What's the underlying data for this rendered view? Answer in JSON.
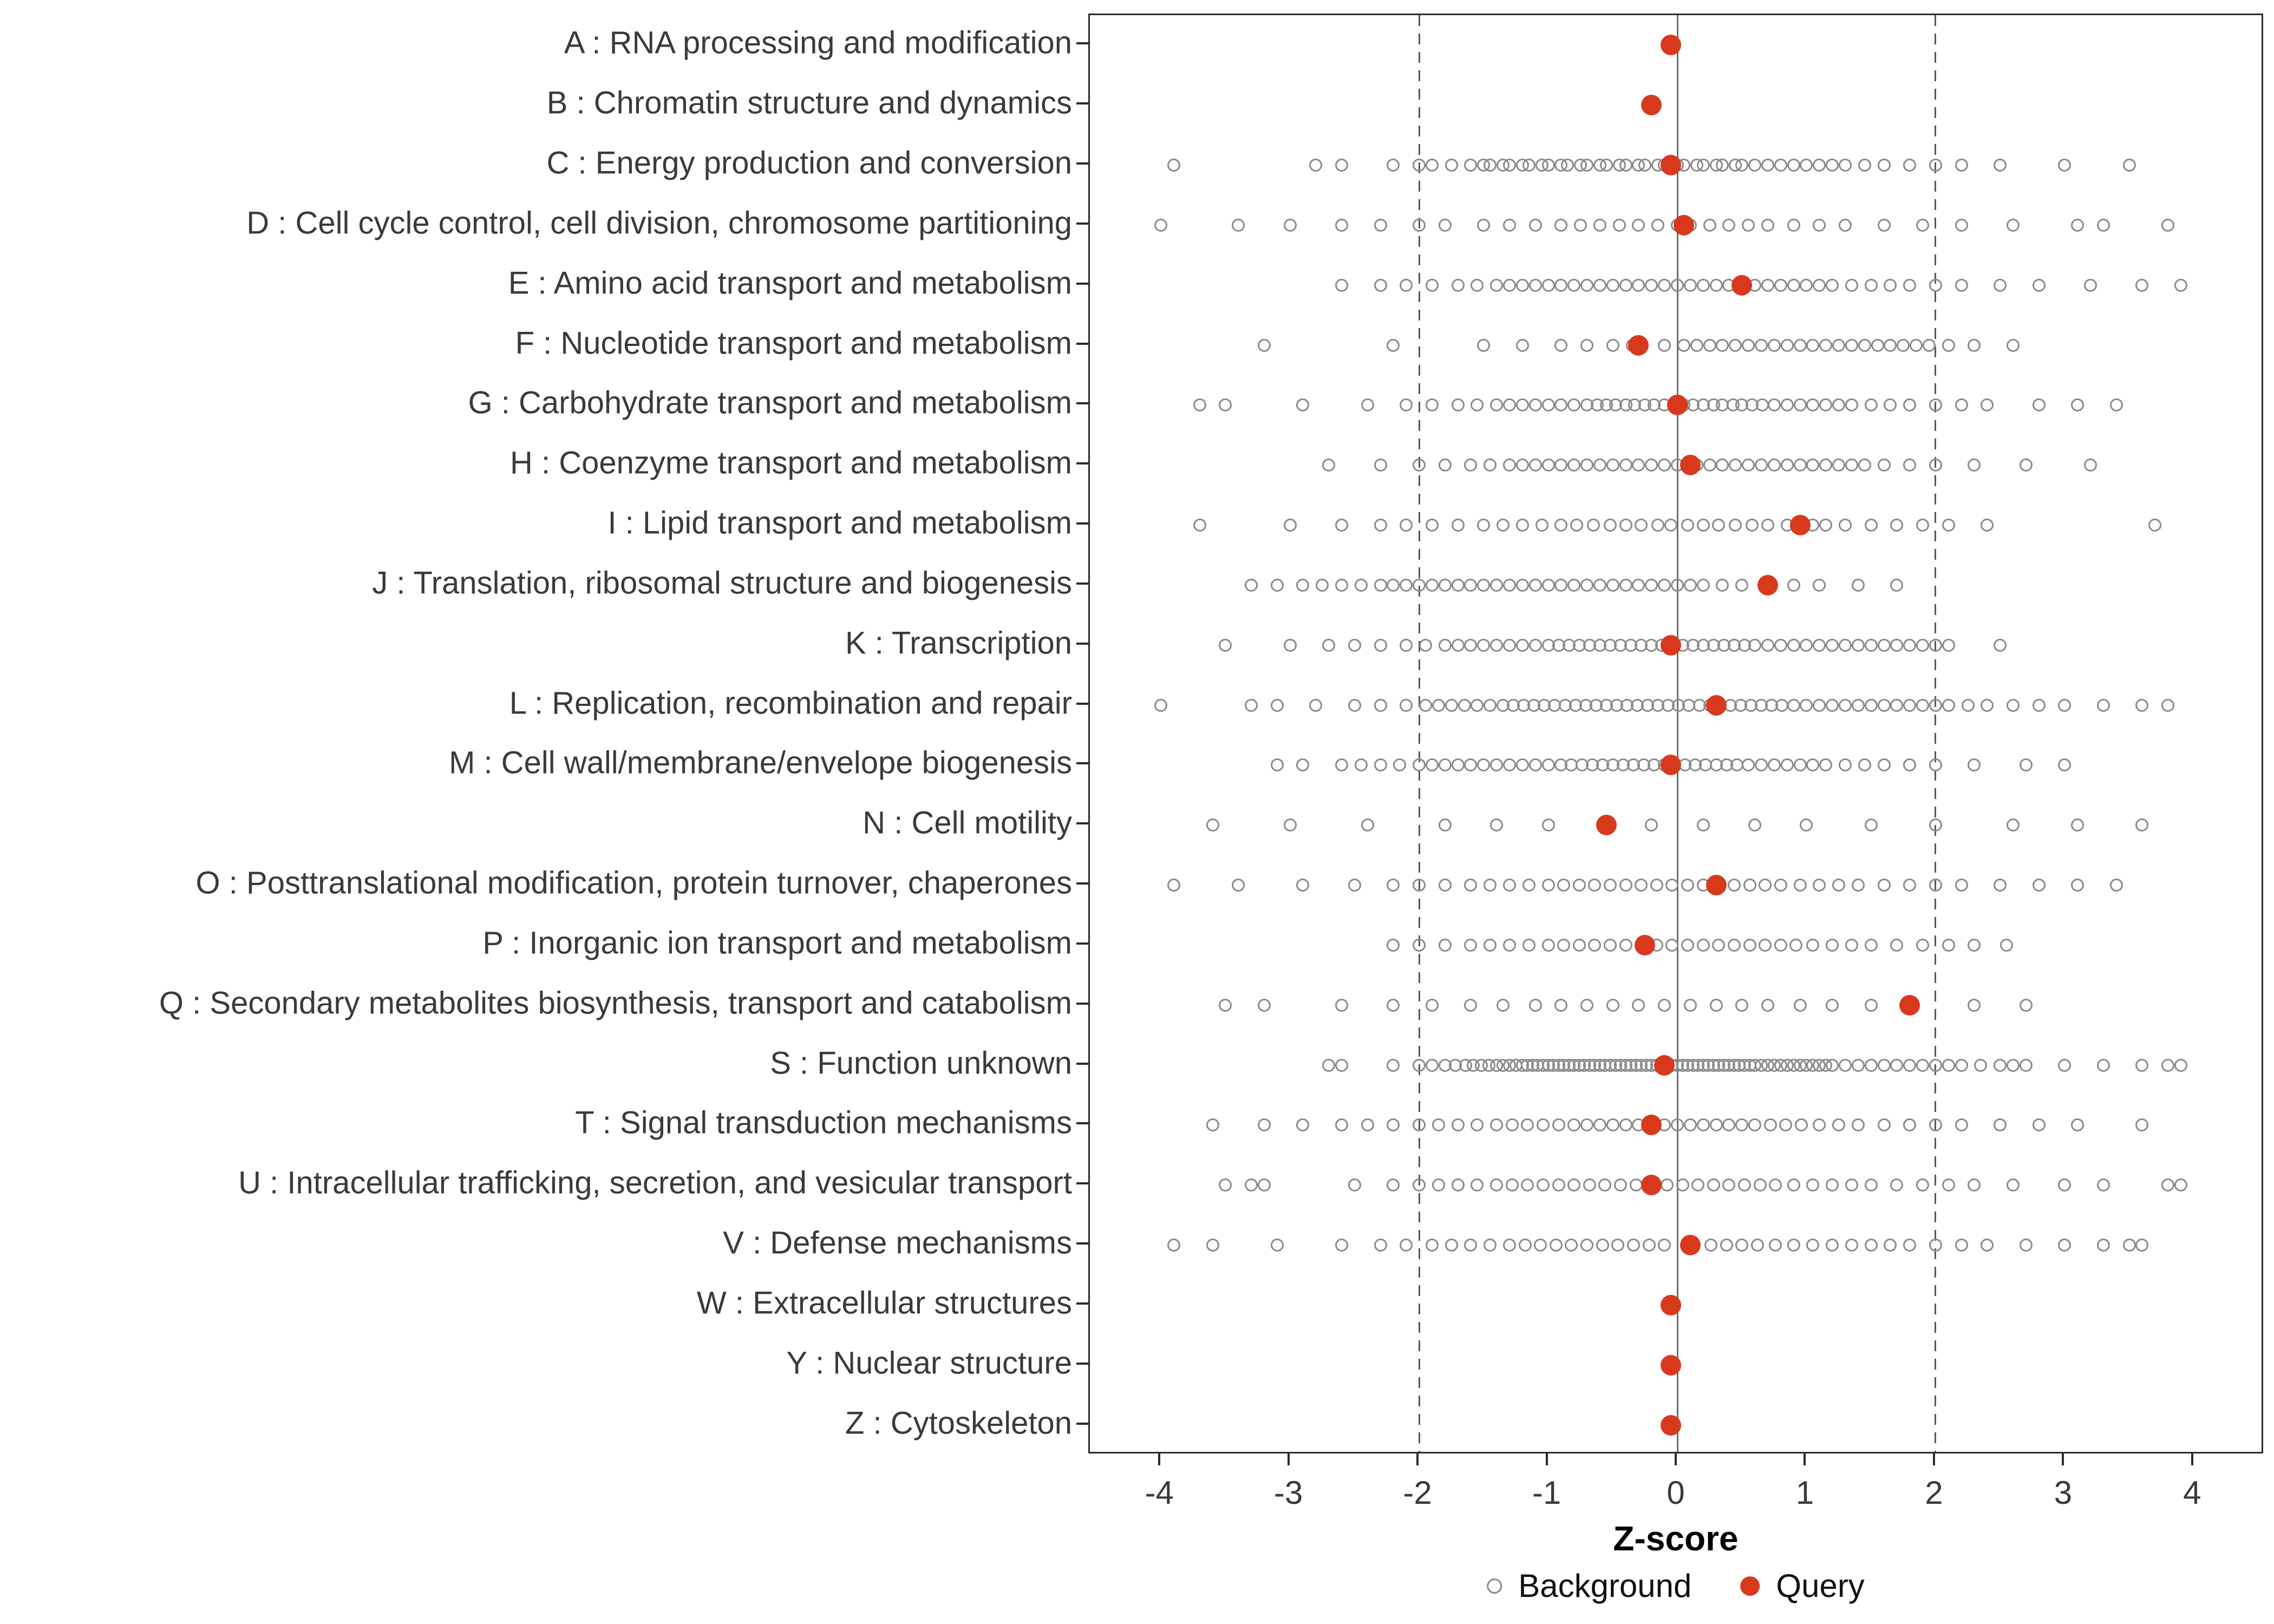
{
  "chart_data": {
    "type": "scatter",
    "title": "",
    "xlabel": "Z-score",
    "ylabel": "",
    "xlim": [
      -4.55,
      4.55
    ],
    "x_ticks": [
      -4,
      -3,
      -2,
      -1,
      0,
      1,
      2,
      3,
      4
    ],
    "grid": false,
    "reference_lines": {
      "solid": [
        0
      ],
      "dashed": [
        -2,
        2
      ]
    },
    "colors": {
      "background": "#8a8a8a",
      "query": "#D8391D",
      "reference": "#565656"
    },
    "legend": [
      {
        "label": "Background",
        "marker": "open-circle",
        "color": "#8a8a8a"
      },
      {
        "label": "Query",
        "marker": "filled-circle",
        "color": "#D8391D"
      }
    ],
    "legend_position": "bottom",
    "categories": [
      {
        "code": "A",
        "label": "A : RNA processing and modification",
        "query": -0.05,
        "background": []
      },
      {
        "code": "B",
        "label": "B : Chromatin structure and dynamics",
        "query": -0.2,
        "background": []
      },
      {
        "code": "C",
        "label": "C : Energy production and conversion",
        "query": -0.05,
        "background": [
          -3.9,
          -2.8,
          -2.6,
          -2.2,
          -2.0,
          -1.9,
          -1.75,
          -1.6,
          -1.5,
          -1.45,
          -1.35,
          -1.3,
          -1.2,
          -1.15,
          -1.05,
          -1.0,
          -0.9,
          -0.85,
          -0.75,
          -0.7,
          -0.6,
          -0.55,
          -0.45,
          -0.4,
          -0.3,
          -0.25,
          -0.15,
          -0.1,
          0.0,
          0.05,
          0.15,
          0.2,
          0.3,
          0.35,
          0.45,
          0.5,
          0.6,
          0.7,
          0.8,
          0.9,
          1.0,
          1.1,
          1.2,
          1.3,
          1.45,
          1.6,
          1.8,
          2.0,
          2.2,
          2.5,
          3.0,
          3.5
        ]
      },
      {
        "code": "D",
        "label": "D : Cell cycle control, cell division, chromosome partitioning",
        "query": 0.05,
        "background": [
          -4.0,
          -3.4,
          -3.0,
          -2.6,
          -2.3,
          -2.0,
          -1.8,
          -1.5,
          -1.3,
          -1.1,
          -0.9,
          -0.75,
          -0.6,
          -0.45,
          -0.3,
          -0.15,
          0.0,
          0.1,
          0.25,
          0.4,
          0.55,
          0.7,
          0.9,
          1.1,
          1.3,
          1.6,
          1.9,
          2.2,
          2.6,
          3.1,
          3.3,
          3.8
        ]
      },
      {
        "code": "E",
        "label": "E : Amino acid transport and metabolism",
        "query": 0.5,
        "background": [
          -2.6,
          -2.3,
          -2.1,
          -1.9,
          -1.7,
          -1.55,
          -1.4,
          -1.3,
          -1.2,
          -1.1,
          -1.0,
          -0.9,
          -0.8,
          -0.7,
          -0.6,
          -0.5,
          -0.4,
          -0.3,
          -0.2,
          -0.1,
          0.0,
          0.1,
          0.2,
          0.3,
          0.4,
          0.6,
          0.7,
          0.8,
          0.9,
          1.0,
          1.1,
          1.2,
          1.35,
          1.5,
          1.65,
          1.8,
          2.0,
          2.2,
          2.5,
          2.8,
          3.2,
          3.6,
          3.9
        ]
      },
      {
        "code": "F",
        "label": "F : Nucleotide transport and metabolism",
        "query": -0.3,
        "background": [
          -3.2,
          -2.2,
          -1.5,
          -1.2,
          -0.9,
          -0.7,
          -0.5,
          -0.35,
          -0.1,
          0.05,
          0.15,
          0.25,
          0.35,
          0.45,
          0.55,
          0.65,
          0.75,
          0.85,
          0.95,
          1.05,
          1.15,
          1.25,
          1.35,
          1.45,
          1.55,
          1.65,
          1.75,
          1.85,
          1.95,
          2.1,
          2.3,
          2.6
        ]
      },
      {
        "code": "G",
        "label": "G : Carbohydrate transport and metabolism",
        "query": 0.0,
        "background": [
          -3.7,
          -3.5,
          -2.9,
          -2.4,
          -2.1,
          -1.9,
          -1.7,
          -1.55,
          -1.4,
          -1.3,
          -1.2,
          -1.1,
          -1.0,
          -0.9,
          -0.8,
          -0.7,
          -0.62,
          -0.55,
          -0.48,
          -0.4,
          -0.33,
          -0.25,
          -0.18,
          -0.1,
          -0.03,
          0.05,
          0.12,
          0.2,
          0.28,
          0.35,
          0.43,
          0.5,
          0.58,
          0.66,
          0.75,
          0.85,
          0.95,
          1.05,
          1.15,
          1.25,
          1.35,
          1.5,
          1.65,
          1.8,
          2.0,
          2.2,
          2.4,
          2.8,
          3.1,
          3.4
        ]
      },
      {
        "code": "H",
        "label": "H : Coenzyme transport and metabolism",
        "query": 0.1,
        "background": [
          -2.7,
          -2.3,
          -2.0,
          -1.8,
          -1.6,
          -1.45,
          -1.3,
          -1.2,
          -1.1,
          -1.0,
          -0.9,
          -0.8,
          -0.7,
          -0.6,
          -0.5,
          -0.4,
          -0.3,
          -0.2,
          -0.1,
          0.0,
          0.15,
          0.25,
          0.35,
          0.45,
          0.55,
          0.65,
          0.75,
          0.85,
          0.95,
          1.05,
          1.15,
          1.25,
          1.35,
          1.45,
          1.6,
          1.8,
          2.0,
          2.3,
          2.7,
          3.2
        ]
      },
      {
        "code": "I",
        "label": "I : Lipid transport and metabolism",
        "query": 0.95,
        "background": [
          -3.7,
          -3.0,
          -2.6,
          -2.3,
          -2.1,
          -1.9,
          -1.7,
          -1.5,
          -1.35,
          -1.2,
          -1.05,
          -0.9,
          -0.78,
          -0.65,
          -0.52,
          -0.4,
          -0.28,
          -0.15,
          -0.05,
          0.08,
          0.2,
          0.32,
          0.45,
          0.58,
          0.7,
          0.85,
          1.05,
          1.15,
          1.3,
          1.5,
          1.7,
          1.9,
          2.1,
          2.4,
          3.7
        ]
      },
      {
        "code": "J",
        "label": "J : Translation, ribosomal structure and biogenesis",
        "query": 0.7,
        "background": [
          -3.3,
          -3.1,
          -2.9,
          -2.75,
          -2.6,
          -2.45,
          -2.3,
          -2.2,
          -2.1,
          -2.0,
          -1.9,
          -1.8,
          -1.7,
          -1.6,
          -1.5,
          -1.4,
          -1.3,
          -1.2,
          -1.1,
          -1.0,
          -0.9,
          -0.8,
          -0.7,
          -0.6,
          -0.5,
          -0.4,
          -0.3,
          -0.2,
          -0.1,
          0.0,
          0.1,
          0.2,
          0.35,
          0.5,
          0.9,
          1.1,
          1.4,
          1.7
        ]
      },
      {
        "code": "K",
        "label": "K : Transcription",
        "query": -0.05,
        "background": [
          -3.5,
          -3.0,
          -2.7,
          -2.5,
          -2.3,
          -2.1,
          -1.95,
          -1.8,
          -1.7,
          -1.6,
          -1.5,
          -1.4,
          -1.3,
          -1.2,
          -1.1,
          -1.0,
          -0.92,
          -0.84,
          -0.76,
          -0.68,
          -0.6,
          -0.52,
          -0.44,
          -0.36,
          -0.28,
          -0.2,
          -0.12,
          0.04,
          0.12,
          0.2,
          0.28,
          0.36,
          0.44,
          0.52,
          0.6,
          0.7,
          0.8,
          0.9,
          1.0,
          1.1,
          1.2,
          1.3,
          1.4,
          1.5,
          1.6,
          1.7,
          1.8,
          1.9,
          2.0,
          2.1,
          2.5
        ]
      },
      {
        "code": "L",
        "label": "L : Replication, recombination and repair",
        "query": 0.3,
        "background": [
          -4.0,
          -3.3,
          -3.1,
          -2.8,
          -2.5,
          -2.3,
          -2.1,
          -1.95,
          -1.85,
          -1.75,
          -1.65,
          -1.55,
          -1.45,
          -1.35,
          -1.27,
          -1.19,
          -1.11,
          -1.03,
          -0.95,
          -0.87,
          -0.79,
          -0.71,
          -0.63,
          -0.55,
          -0.47,
          -0.39,
          -0.31,
          -0.23,
          -0.15,
          -0.07,
          0.01,
          0.09,
          0.17,
          0.25,
          0.41,
          0.49,
          0.57,
          0.65,
          0.73,
          0.81,
          0.9,
          1.0,
          1.1,
          1.2,
          1.3,
          1.4,
          1.5,
          1.6,
          1.7,
          1.8,
          1.9,
          2.0,
          2.1,
          2.25,
          2.4,
          2.6,
          2.8,
          3.0,
          3.3,
          3.6,
          3.8
        ]
      },
      {
        "code": "M",
        "label": "M : Cell wall/membrane/envelope biogenesis",
        "query": -0.05,
        "background": [
          -3.1,
          -2.9,
          -2.6,
          -2.45,
          -2.3,
          -2.15,
          -2.0,
          -1.9,
          -1.8,
          -1.7,
          -1.6,
          -1.5,
          -1.4,
          -1.3,
          -1.2,
          -1.1,
          -1.0,
          -0.9,
          -0.82,
          -0.74,
          -0.66,
          -0.58,
          -0.5,
          -0.42,
          -0.34,
          -0.26,
          -0.18,
          -0.1,
          0.06,
          0.14,
          0.22,
          0.3,
          0.38,
          0.46,
          0.55,
          0.65,
          0.75,
          0.85,
          0.95,
          1.05,
          1.15,
          1.3,
          1.45,
          1.6,
          1.8,
          2.0,
          2.3,
          2.7,
          3.0
        ]
      },
      {
        "code": "N",
        "label": "N : Cell motility",
        "query": -0.55,
        "background": [
          -3.6,
          -3.0,
          -2.4,
          -1.8,
          -1.4,
          -1.0,
          -0.2,
          0.2,
          0.6,
          1.0,
          1.5,
          2.0,
          2.6,
          3.1,
          3.6
        ]
      },
      {
        "code": "O",
        "label": "O : Posttranslational modification, protein turnover, chaperones",
        "query": 0.3,
        "background": [
          -3.9,
          -3.4,
          -2.9,
          -2.5,
          -2.2,
          -2.0,
          -1.8,
          -1.6,
          -1.45,
          -1.3,
          -1.15,
          -1.0,
          -0.88,
          -0.76,
          -0.64,
          -0.52,
          -0.4,
          -0.28,
          -0.16,
          -0.04,
          0.08,
          0.2,
          0.44,
          0.56,
          0.68,
          0.8,
          0.95,
          1.1,
          1.25,
          1.4,
          1.6,
          1.8,
          2.0,
          2.2,
          2.5,
          2.8,
          3.1,
          3.4
        ]
      },
      {
        "code": "P",
        "label": "P : Inorganic ion transport and metabolism",
        "query": -0.25,
        "background": [
          -2.2,
          -2.0,
          -1.8,
          -1.6,
          -1.45,
          -1.3,
          -1.15,
          -1.0,
          -0.88,
          -0.76,
          -0.64,
          -0.52,
          -0.4,
          -0.16,
          -0.04,
          0.08,
          0.2,
          0.32,
          0.44,
          0.56,
          0.68,
          0.8,
          0.92,
          1.05,
          1.2,
          1.35,
          1.5,
          1.7,
          1.9,
          2.1,
          2.3,
          2.55
        ]
      },
      {
        "code": "Q",
        "label": "Q : Secondary metabolites biosynthesis, transport and catabolism",
        "query": 1.8,
        "background": [
          -3.5,
          -3.2,
          -2.6,
          -2.2,
          -1.9,
          -1.6,
          -1.35,
          -1.1,
          -0.9,
          -0.7,
          -0.5,
          -0.3,
          -0.1,
          0.1,
          0.3,
          0.5,
          0.7,
          0.95,
          1.2,
          1.5,
          2.3,
          2.7
        ]
      },
      {
        "code": "S",
        "label": "S : Function unknown",
        "query": -0.1,
        "background": [
          -2.7,
          -2.6,
          -2.2,
          -2.0,
          -1.9,
          -1.8,
          -1.72,
          -1.64,
          -1.58,
          -1.52,
          -1.46,
          -1.4,
          -1.35,
          -1.3,
          -1.25,
          -1.2,
          -1.16,
          -1.12,
          -1.08,
          -1.04,
          -1.0,
          -0.96,
          -0.92,
          -0.88,
          -0.84,
          -0.8,
          -0.76,
          -0.72,
          -0.68,
          -0.64,
          -0.6,
          -0.56,
          -0.52,
          -0.48,
          -0.44,
          -0.4,
          -0.36,
          -0.32,
          -0.28,
          -0.24,
          -0.2,
          -0.16,
          -0.12,
          -0.08,
          -0.04,
          0.0,
          0.04,
          0.08,
          0.12,
          0.16,
          0.2,
          0.24,
          0.28,
          0.32,
          0.36,
          0.4,
          0.44,
          0.48,
          0.52,
          0.56,
          0.6,
          0.65,
          0.7,
          0.75,
          0.8,
          0.85,
          0.9,
          0.95,
          1.0,
          1.05,
          1.1,
          1.15,
          1.2,
          1.3,
          1.4,
          1.5,
          1.6,
          1.7,
          1.8,
          1.9,
          2.0,
          2.1,
          2.2,
          2.35,
          2.5,
          2.6,
          2.7,
          3.0,
          3.3,
          3.6,
          3.8,
          3.9
        ]
      },
      {
        "code": "T",
        "label": "T : Signal transduction mechanisms",
        "query": -0.2,
        "background": [
          -3.6,
          -3.2,
          -2.9,
          -2.6,
          -2.4,
          -2.2,
          -2.0,
          -1.85,
          -1.7,
          -1.55,
          -1.4,
          -1.28,
          -1.16,
          -1.04,
          -0.92,
          -0.8,
          -0.7,
          -0.6,
          -0.5,
          -0.4,
          -0.3,
          -0.1,
          0.0,
          0.1,
          0.2,
          0.3,
          0.4,
          0.5,
          0.6,
          0.72,
          0.84,
          0.96,
          1.1,
          1.25,
          1.4,
          1.6,
          1.8,
          2.0,
          2.2,
          2.5,
          2.8,
          3.1,
          3.6
        ]
      },
      {
        "code": "U",
        "label": "U : Intracellular trafficking, secretion, and vesicular transport",
        "query": -0.2,
        "background": [
          -3.5,
          -3.3,
          -3.2,
          -2.5,
          -2.2,
          -2.0,
          -1.85,
          -1.7,
          -1.55,
          -1.4,
          -1.28,
          -1.16,
          -1.04,
          -0.92,
          -0.8,
          -0.68,
          -0.56,
          -0.44,
          -0.32,
          -0.08,
          0.04,
          0.16,
          0.28,
          0.4,
          0.52,
          0.64,
          0.76,
          0.9,
          1.05,
          1.2,
          1.35,
          1.5,
          1.7,
          1.9,
          2.1,
          2.3,
          2.6,
          3.0,
          3.3,
          3.8,
          3.9
        ]
      },
      {
        "code": "V",
        "label": "V : Defense mechanisms",
        "query": 0.1,
        "background": [
          -3.9,
          -3.6,
          -3.1,
          -2.6,
          -2.3,
          -2.1,
          -1.9,
          -1.75,
          -1.6,
          -1.45,
          -1.3,
          -1.18,
          -1.06,
          -0.94,
          -0.82,
          -0.7,
          -0.58,
          -0.46,
          -0.34,
          -0.22,
          -0.1,
          0.26,
          0.38,
          0.5,
          0.62,
          0.76,
          0.9,
          1.05,
          1.2,
          1.35,
          1.5,
          1.65,
          1.8,
          2.0,
          2.2,
          2.4,
          2.7,
          3.0,
          3.3,
          3.5,
          3.6
        ]
      },
      {
        "code": "W",
        "label": "W : Extracellular structures",
        "query": -0.05,
        "background": []
      },
      {
        "code": "Y",
        "label": "Y : Nuclear structure",
        "query": -0.05,
        "background": []
      },
      {
        "code": "Z",
        "label": "Z : Cytoskeleton",
        "query": -0.05,
        "background": []
      }
    ]
  }
}
